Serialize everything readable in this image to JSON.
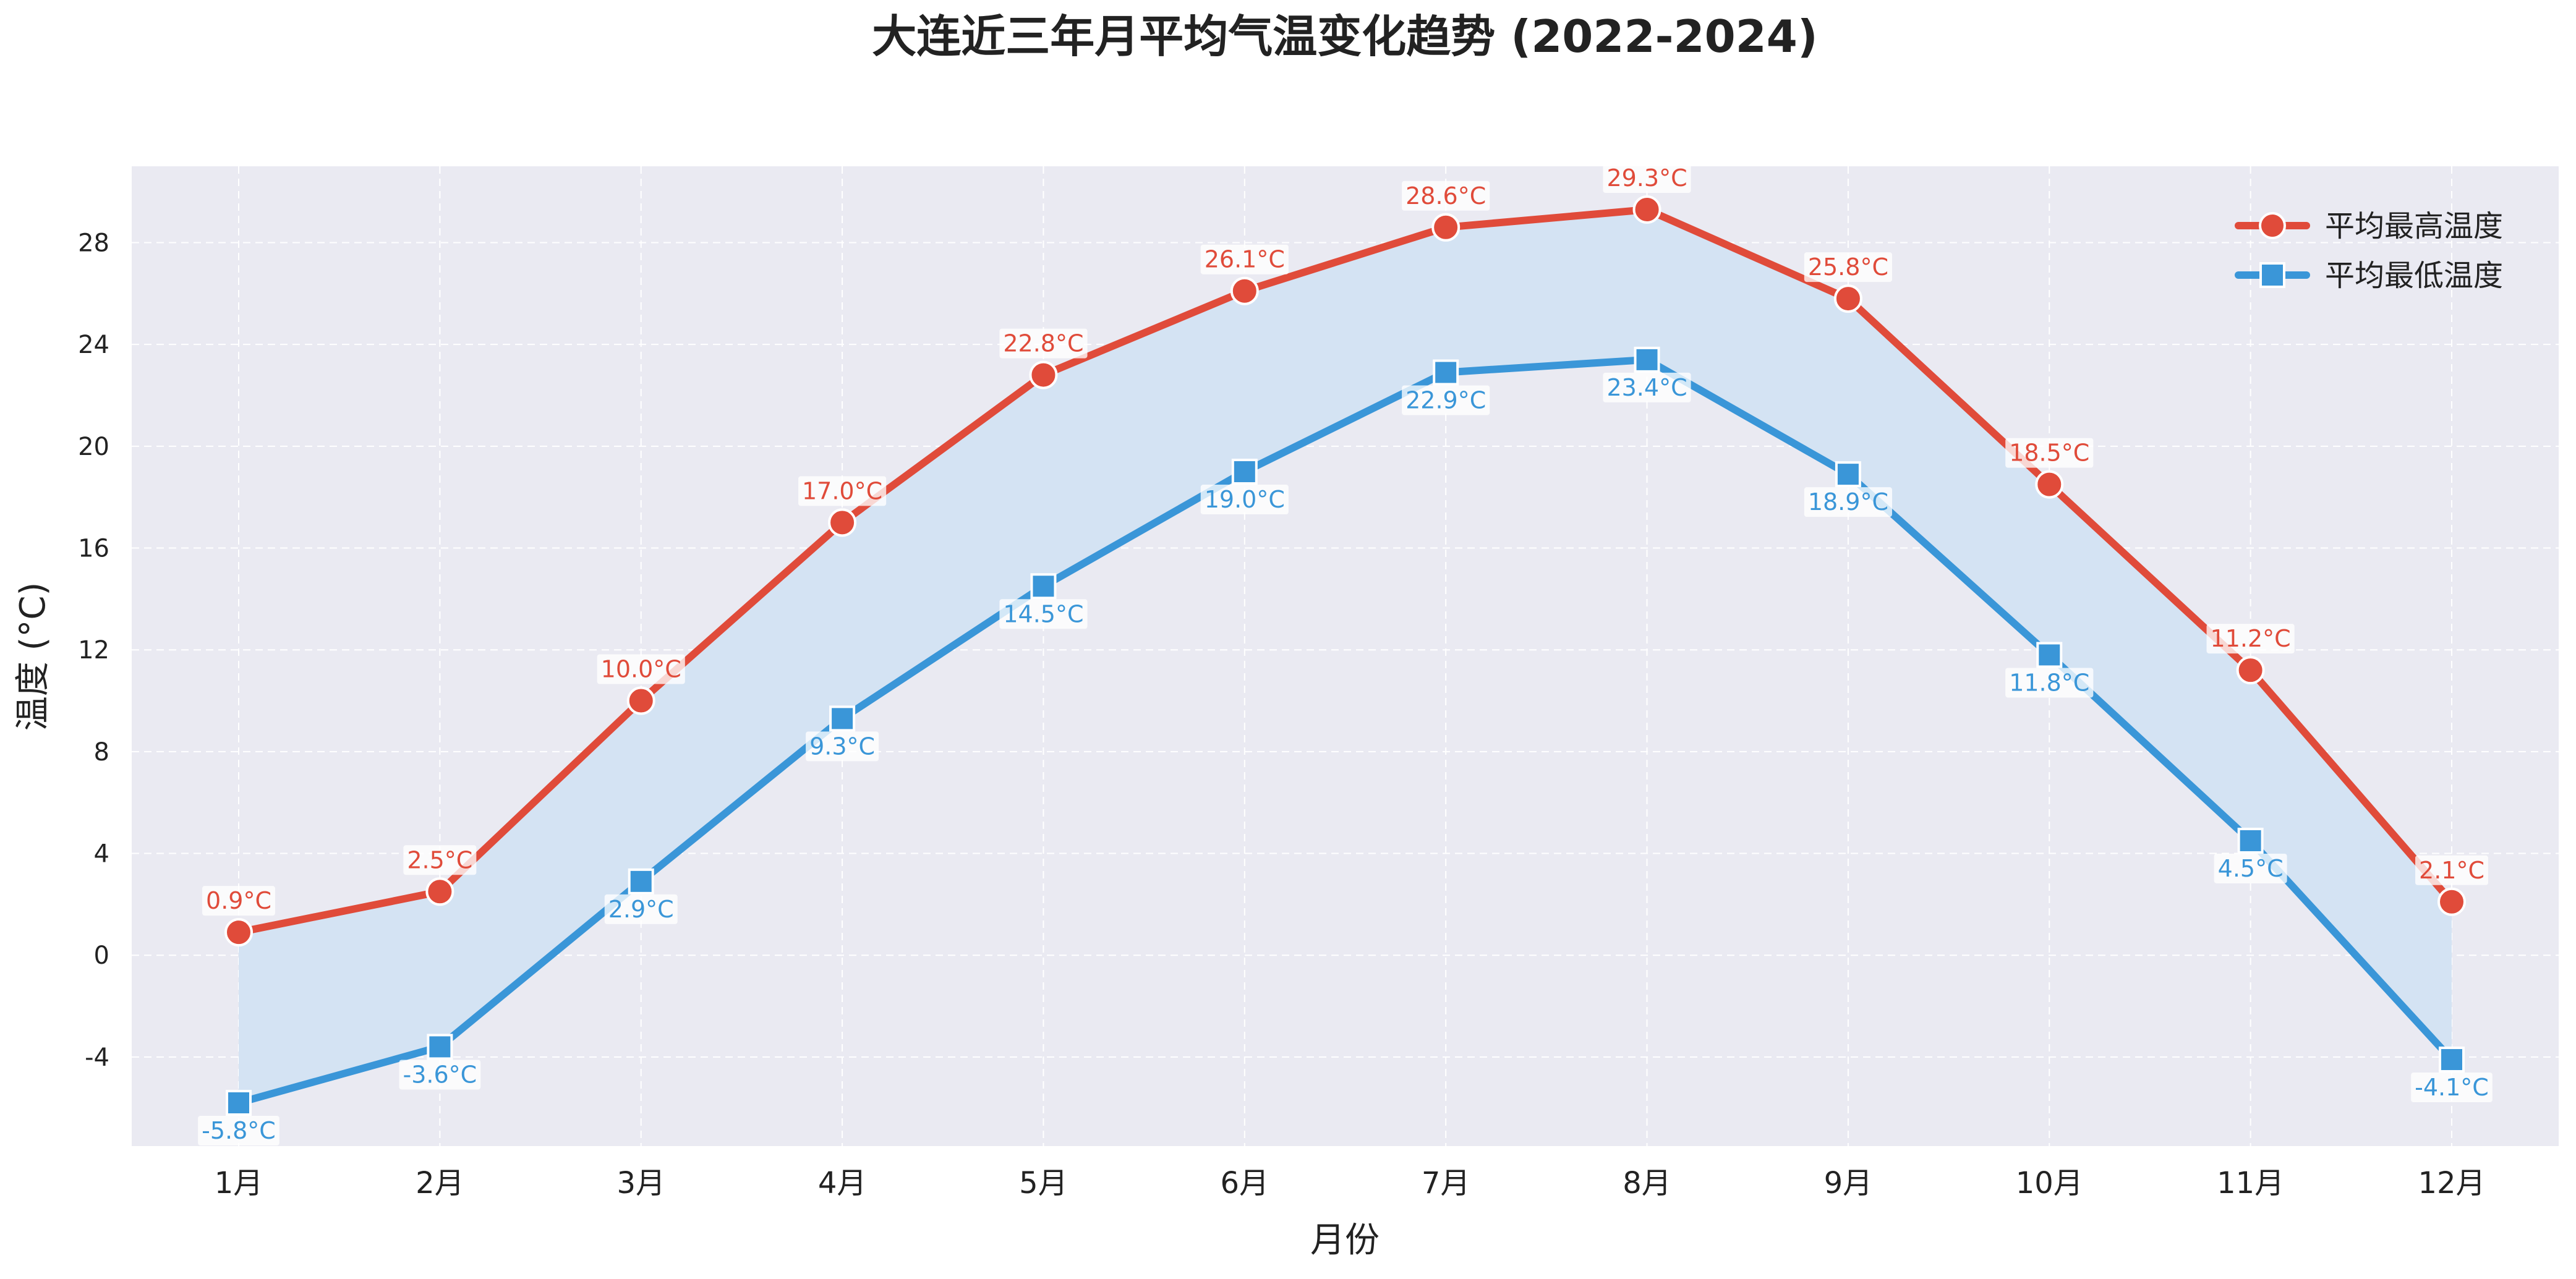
{
  "chart_data": {
    "type": "line",
    "title": "大连近三年月平均气温变化趋势 (2022-2024)",
    "xlabel": "月份",
    "ylabel": "温度 (°C)",
    "categories": [
      "1月",
      "2月",
      "3月",
      "4月",
      "5月",
      "6月",
      "7月",
      "8月",
      "9月",
      "10月",
      "11月",
      "12月"
    ],
    "y_ticks": [
      "-4",
      "0",
      "4",
      "8",
      "12",
      "16",
      "20",
      "24",
      "28"
    ],
    "ylim": [
      -7.5,
      31
    ],
    "grid": true,
    "legend_position": "top-right",
    "fill_between": true,
    "series": [
      {
        "name": "平均最高温度",
        "marker": "circle",
        "color": "#e04b3a",
        "values": [
          0.9,
          2.5,
          10.0,
          17.0,
          22.8,
          26.1,
          28.6,
          29.3,
          25.8,
          18.5,
          11.2,
          2.1
        ],
        "labels": [
          "0.9°C",
          "2.5°C",
          "10.0°C",
          "17.0°C",
          "22.8°C",
          "26.1°C",
          "28.6°C",
          "29.3°C",
          "25.8°C",
          "18.5°C",
          "11.2°C",
          "2.1°C"
        ]
      },
      {
        "name": "平均最低温度",
        "marker": "square",
        "color": "#3a96d8",
        "values": [
          -5.8,
          -3.6,
          2.9,
          9.3,
          14.5,
          19.0,
          22.9,
          23.4,
          18.9,
          11.8,
          4.5,
          -4.1
        ],
        "labels": [
          "-5.8°C",
          "-3.6°C",
          "2.9°C",
          "9.3°C",
          "14.5°C",
          "19.0°C",
          "22.9°C",
          "23.4°C",
          "18.9°C",
          "11.8°C",
          "4.5°C",
          "-4.1°C"
        ]
      }
    ],
    "colors": {
      "plot_background": "#eaeaf2",
      "fill": "#d4e3f3",
      "grid": "#ffffff"
    }
  }
}
